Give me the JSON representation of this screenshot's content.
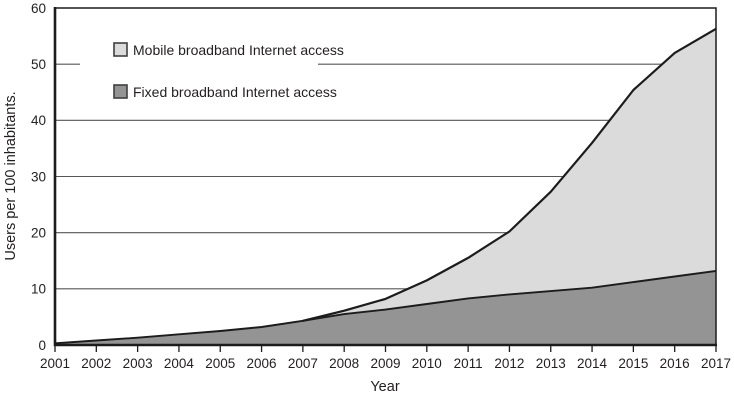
{
  "figure": {
    "background": "#ffffff"
  },
  "chart_data": {
    "type": "area",
    "overlay": true,
    "title": "",
    "xlabel": "Year",
    "ylabel": "Users per 100 inhabitants.",
    "x": [
      2001,
      2002,
      2003,
      2004,
      2005,
      2006,
      2007,
      2008,
      2009,
      2010,
      2011,
      2012,
      2013,
      2014,
      2015,
      2016,
      2017
    ],
    "ylim": [
      0,
      60
    ],
    "yticks": [
      0,
      10,
      20,
      30,
      40,
      50,
      60
    ],
    "grid": true,
    "legend_position": "top-left-inside",
    "series": [
      {
        "name": "Mobile broadband Internet access",
        "fill": "#dbdbdb",
        "line": "#1c1c1c",
        "values": [
          null,
          null,
          null,
          null,
          null,
          null,
          4.3,
          6.1,
          8.2,
          11.5,
          15.5,
          20.2,
          27.3,
          36.0,
          45.4,
          52.0,
          56.3
        ]
      },
      {
        "name": "Fixed broadband Internet access",
        "fill": "#949494",
        "line": "#1c1c1c",
        "values": [
          0.3,
          0.8,
          1.3,
          1.9,
          2.5,
          3.2,
          4.3,
          5.5,
          6.3,
          7.3,
          8.3,
          9.0,
          9.6,
          10.2,
          11.2,
          12.2,
          13.2
        ]
      }
    ],
    "colors": {
      "grid": "#565656",
      "axis": "#1c1c1c",
      "text": "#231f20",
      "legend_background": "#ffffff",
      "swatch_border": "#3f3f3f"
    }
  }
}
